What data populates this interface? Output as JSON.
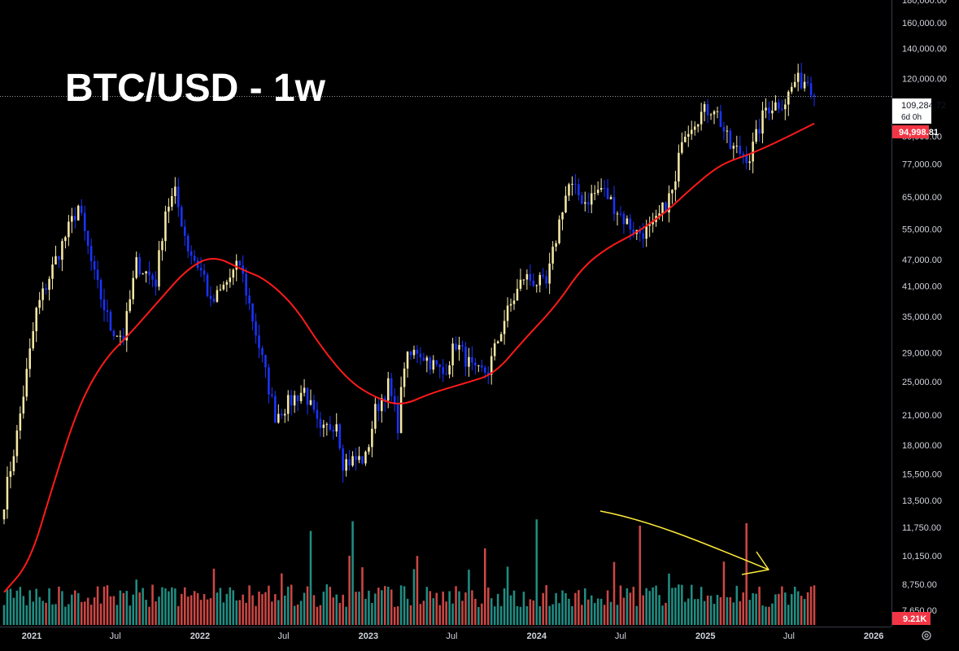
{
  "chart_data": {
    "type": "candlestick",
    "title": "BTC/USD - 1w",
    "y_scale": "log",
    "ylim": [
      7650,
      180000
    ],
    "y_ticks": [
      {
        "value": 180000,
        "label": "180,000.00"
      },
      {
        "value": 160000,
        "label": "160,000.00"
      },
      {
        "value": 140000,
        "label": "140,000.00"
      },
      {
        "value": 120000,
        "label": "120,000.00"
      },
      {
        "value": 89000,
        "label": "89,000.00"
      },
      {
        "value": 77000,
        "label": "77,000.00"
      },
      {
        "value": 65000,
        "label": "65,000.00"
      },
      {
        "value": 55000,
        "label": "55,000.00"
      },
      {
        "value": 47000,
        "label": "47,000.00"
      },
      {
        "value": 41000,
        "label": "41,000.00"
      },
      {
        "value": 35000,
        "label": "35,000.00"
      },
      {
        "value": 29000,
        "label": "29,000.00"
      },
      {
        "value": 25000,
        "label": "25,000.00"
      },
      {
        "value": 21000,
        "label": "21,000.00"
      },
      {
        "value": 18000,
        "label": "18,000.00"
      },
      {
        "value": 15500,
        "label": "15,500.00"
      },
      {
        "value": 13500,
        "label": "13,500.00"
      },
      {
        "value": 11750,
        "label": "11,750.00"
      },
      {
        "value": 10150,
        "label": "10,150.00"
      },
      {
        "value": 8750,
        "label": "8,750.00"
      },
      {
        "value": 7650,
        "label": "7,650.00"
      }
    ],
    "x_ticks": [
      {
        "date": "2021-01-01",
        "label": "2021"
      },
      {
        "date": "2021-07-01",
        "label": "Jul"
      },
      {
        "date": "2022-01-01",
        "label": "2022"
      },
      {
        "date": "2022-07-01",
        "label": "Jul"
      },
      {
        "date": "2023-01-01",
        "label": "2023"
      },
      {
        "date": "2023-07-01",
        "label": "Jul"
      },
      {
        "date": "2024-01-01",
        "label": "2024"
      },
      {
        "date": "2024-07-01",
        "label": "Jul"
      },
      {
        "date": "2025-01-01",
        "label": "2025"
      },
      {
        "date": "2025-07-01",
        "label": "Jul"
      },
      {
        "date": "2026-01-01",
        "label": "2026"
      }
    ],
    "xlim": [
      "2020-11-02",
      "2026-04-13"
    ],
    "price_anchors": [
      [
        "2020-11-02",
        13500
      ],
      [
        "2020-11-30",
        19000
      ],
      [
        "2020-12-28",
        29000
      ],
      [
        "2021-01-11",
        36000
      ],
      [
        "2021-02-22",
        47000
      ],
      [
        "2021-04-12",
        62000
      ],
      [
        "2021-05-17",
        43000
      ],
      [
        "2021-06-21",
        33000
      ],
      [
        "2021-07-19",
        31500
      ],
      [
        "2021-08-16",
        46000
      ],
      [
        "2021-09-27",
        42000
      ],
      [
        "2021-10-18",
        61000
      ],
      [
        "2021-11-08",
        66000
      ],
      [
        "2021-12-06",
        50000
      ],
      [
        "2022-01-10",
        43000
      ],
      [
        "2022-01-24",
        37000
      ],
      [
        "2022-03-28",
        46000
      ],
      [
        "2022-05-09",
        30000
      ],
      [
        "2022-06-13",
        21000
      ],
      [
        "2022-07-25",
        23000
      ],
      [
        "2022-08-15",
        24000
      ],
      [
        "2022-09-19",
        19000
      ],
      [
        "2022-10-24",
        20500
      ],
      [
        "2022-11-07",
        16500
      ],
      [
        "2022-12-26",
        16800
      ],
      [
        "2023-01-16",
        21500
      ],
      [
        "2023-02-13",
        24500
      ],
      [
        "2023-03-06",
        20000
      ],
      [
        "2023-03-20",
        27500
      ],
      [
        "2023-04-17",
        29500
      ],
      [
        "2023-06-12",
        26000
      ],
      [
        "2023-07-10",
        30500
      ],
      [
        "2023-08-21",
        26000
      ],
      [
        "2023-09-18",
        26500
      ],
      [
        "2023-10-23",
        34500
      ],
      [
        "2023-12-04",
        43000
      ],
      [
        "2024-01-22",
        41000
      ],
      [
        "2024-02-26",
        62000
      ],
      [
        "2024-03-11",
        69000
      ],
      [
        "2024-04-15",
        63500
      ],
      [
        "2024-05-20",
        68000
      ],
      [
        "2024-07-08",
        58000
      ],
      [
        "2024-08-05",
        54000
      ],
      [
        "2024-09-09",
        55000
      ],
      [
        "2024-10-28",
        69000
      ],
      [
        "2024-11-11",
        90000
      ],
      [
        "2024-12-16",
        99000
      ],
      [
        "2025-01-20",
        104000
      ],
      [
        "2025-02-24",
        84000
      ],
      [
        "2025-04-07",
        80000
      ],
      [
        "2025-05-12",
        103000
      ],
      [
        "2025-06-23",
        107000
      ],
      [
        "2025-07-14",
        118000
      ],
      [
        "2025-08-11",
        119000
      ],
      [
        "2025-08-18",
        115000
      ],
      [
        "2025-08-25",
        109284.72
      ]
    ],
    "ma": {
      "color": "#ff1a1a",
      "points": [
        [
          "2020-11-02",
          8400
        ],
        [
          "2020-12-28",
          9800
        ],
        [
          "2021-02-15",
          14500
        ],
        [
          "2021-04-12",
          22000
        ],
        [
          "2021-06-07",
          28000
        ],
        [
          "2021-08-02",
          32000
        ],
        [
          "2021-10-04",
          38000
        ],
        [
          "2021-12-06",
          45000
        ],
        [
          "2022-01-31",
          48000
        ],
        [
          "2022-04-04",
          44500
        ],
        [
          "2022-05-23",
          42500
        ],
        [
          "2022-07-25",
          37000
        ],
        [
          "2022-09-19",
          30000
        ],
        [
          "2022-11-21",
          25000
        ],
        [
          "2023-01-16",
          23000
        ],
        [
          "2023-03-13",
          22000
        ],
        [
          "2023-05-15",
          23500
        ],
        [
          "2023-07-31",
          24800
        ],
        [
          "2023-10-02",
          26000
        ],
        [
          "2023-12-04",
          31000
        ],
        [
          "2024-02-12",
          37000
        ],
        [
          "2024-04-08",
          45000
        ],
        [
          "2024-06-03",
          50000
        ],
        [
          "2024-08-05",
          54000
        ],
        [
          "2024-10-07",
          60000
        ],
        [
          "2024-12-02",
          68000
        ],
        [
          "2025-02-03",
          77000
        ],
        [
          "2025-04-07",
          81000
        ],
        [
          "2025-06-02",
          86000
        ],
        [
          "2025-08-25",
          94998.81
        ]
      ]
    },
    "price_label": {
      "value": "109,284.72",
      "countdown": "6d 0h",
      "bg": "#ffffff",
      "fg": "#131722"
    },
    "ma_label": {
      "value": "94,998.81",
      "bg": "#f23645",
      "fg": "#ffffff"
    },
    "volume_label": {
      "value": "9.21K",
      "bg": "#f23645",
      "fg": "#ffffff"
    },
    "colors": {
      "up_candle": "#f5e9a6",
      "down_candle": "#1a33ff",
      "volume_up": "#26a69a",
      "volume_down": "#ef5350",
      "annotation": "#ffeb3b",
      "axis_text": "#d1d4dc",
      "price_line": "#9598a1"
    },
    "annotation": "yellow hand-drawn arrow pointing down-right over 2024–2025 volume",
    "grid": false
  },
  "icons": {
    "settings": "gear-icon"
  }
}
